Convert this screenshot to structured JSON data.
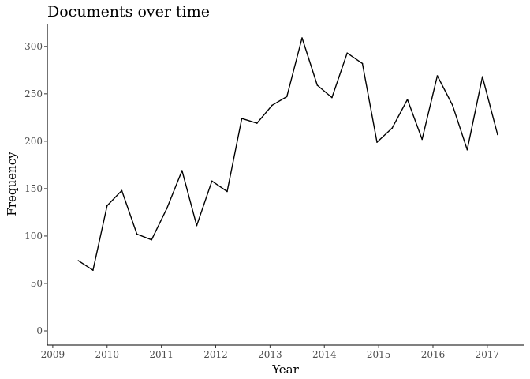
{
  "chart_data": {
    "type": "line",
    "title": "Documents over time",
    "xlabel": "Year",
    "ylabel": "Frequency",
    "xlim": [
      2008.9,
      2017.67
    ],
    "ylim": [
      -15,
      324
    ],
    "grid": false,
    "x_ticks": [
      2009,
      2010,
      2011,
      2012,
      2013,
      2014,
      2015,
      2016,
      2017
    ],
    "x_tick_labels": [
      "2009",
      "2010",
      "2011",
      "2012",
      "2013",
      "2014",
      "2015",
      "2016",
      "2017"
    ],
    "y_ticks": [
      0,
      50,
      100,
      150,
      200,
      250,
      300
    ],
    "y_tick_labels": [
      "0",
      "50",
      "100",
      "150",
      "200",
      "250",
      "300"
    ],
    "series": [
      {
        "x": [
          2009.47,
          2009.74,
          2010.0,
          2010.27,
          2010.55,
          2010.82,
          2011.1,
          2011.38,
          2011.65,
          2011.93,
          2012.21,
          2012.48,
          2012.76,
          2013.04,
          2013.31,
          2013.59,
          2013.87,
          2014.14,
          2014.42,
          2014.7,
          2014.97,
          2015.25,
          2015.53,
          2015.8,
          2016.08,
          2016.36,
          2016.63,
          2016.91,
          2017.19
        ],
        "y": [
          74,
          64,
          132,
          148,
          102,
          96,
          129,
          169,
          111,
          158,
          147,
          224,
          219,
          238,
          247,
          309,
          259,
          246,
          293,
          282,
          199,
          214,
          244,
          202,
          269,
          238,
          191,
          268,
          207
        ]
      }
    ]
  }
}
